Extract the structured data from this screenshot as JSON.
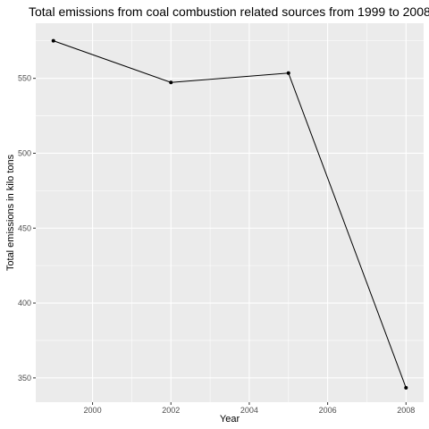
{
  "chart_data": {
    "type": "line",
    "title": "Total emissions from coal combustion related sources from 1999 to 2008",
    "xlabel": "Year",
    "ylabel": "Total emissions in kilo tons",
    "x": [
      1999,
      2002,
      2005,
      2008
    ],
    "series": [
      {
        "values": [
          575.1,
          547.3,
          553.5,
          343.4
        ]
      }
    ],
    "xlim": [
      1998.55,
      2008.45
    ],
    "ylim": [
      333.8,
      586.8
    ],
    "x_ticks": [
      2000,
      2002,
      2004,
      2006,
      2008
    ],
    "y_ticks": [
      350,
      400,
      450,
      500,
      550
    ],
    "x_tick_labels": [
      "2000",
      "2002",
      "2004",
      "2006",
      "2008"
    ],
    "y_tick_labels": [
      "350",
      "400",
      "450",
      "500",
      "550"
    ],
    "grid": true,
    "legend": "none",
    "colors": {
      "panel_background": "#ebebeb",
      "grid_major": "#ffffff",
      "line": "#000000",
      "point": "#000000",
      "tick_text": "#4d4d4d",
      "tick_mark": "#333333"
    }
  }
}
